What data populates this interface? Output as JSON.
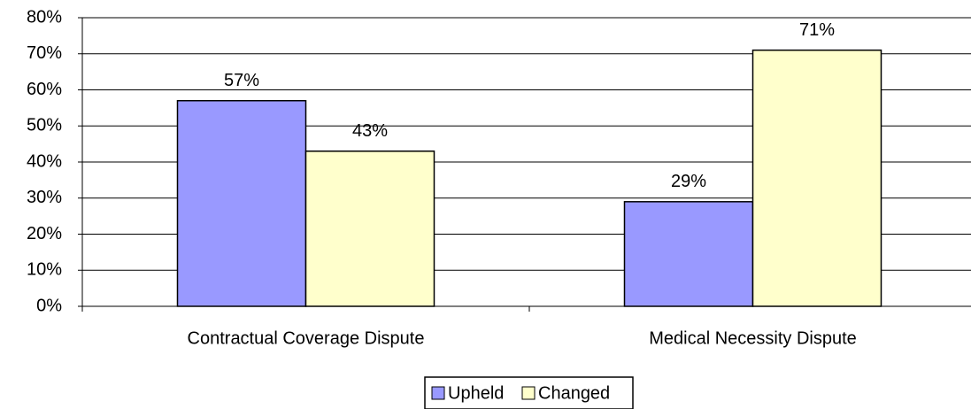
{
  "chart_data": {
    "type": "bar",
    "categories": [
      "Contractual Coverage Dispute",
      "Medical Necessity Dispute"
    ],
    "series": [
      {
        "name": "Upheld",
        "color": "#9999ff",
        "values": [
          57,
          29
        ],
        "value_labels": [
          "57%",
          "29%"
        ]
      },
      {
        "name": "Changed",
        "color": "#ffffcc",
        "values": [
          43,
          71
        ],
        "value_labels": [
          "43%",
          "71%"
        ]
      }
    ],
    "ylim": [
      0,
      80
    ],
    "yticks": [
      {
        "value": 0,
        "label": "0%"
      },
      {
        "value": 10,
        "label": "10%"
      },
      {
        "value": 20,
        "label": "20%"
      },
      {
        "value": 30,
        "label": "30%"
      },
      {
        "value": 40,
        "label": "40%"
      },
      {
        "value": 50,
        "label": "50%"
      },
      {
        "value": 60,
        "label": "60%"
      },
      {
        "value": 70,
        "label": "70%"
      },
      {
        "value": 80,
        "label": "80%"
      }
    ],
    "grid": true,
    "legend": "bottom"
  }
}
